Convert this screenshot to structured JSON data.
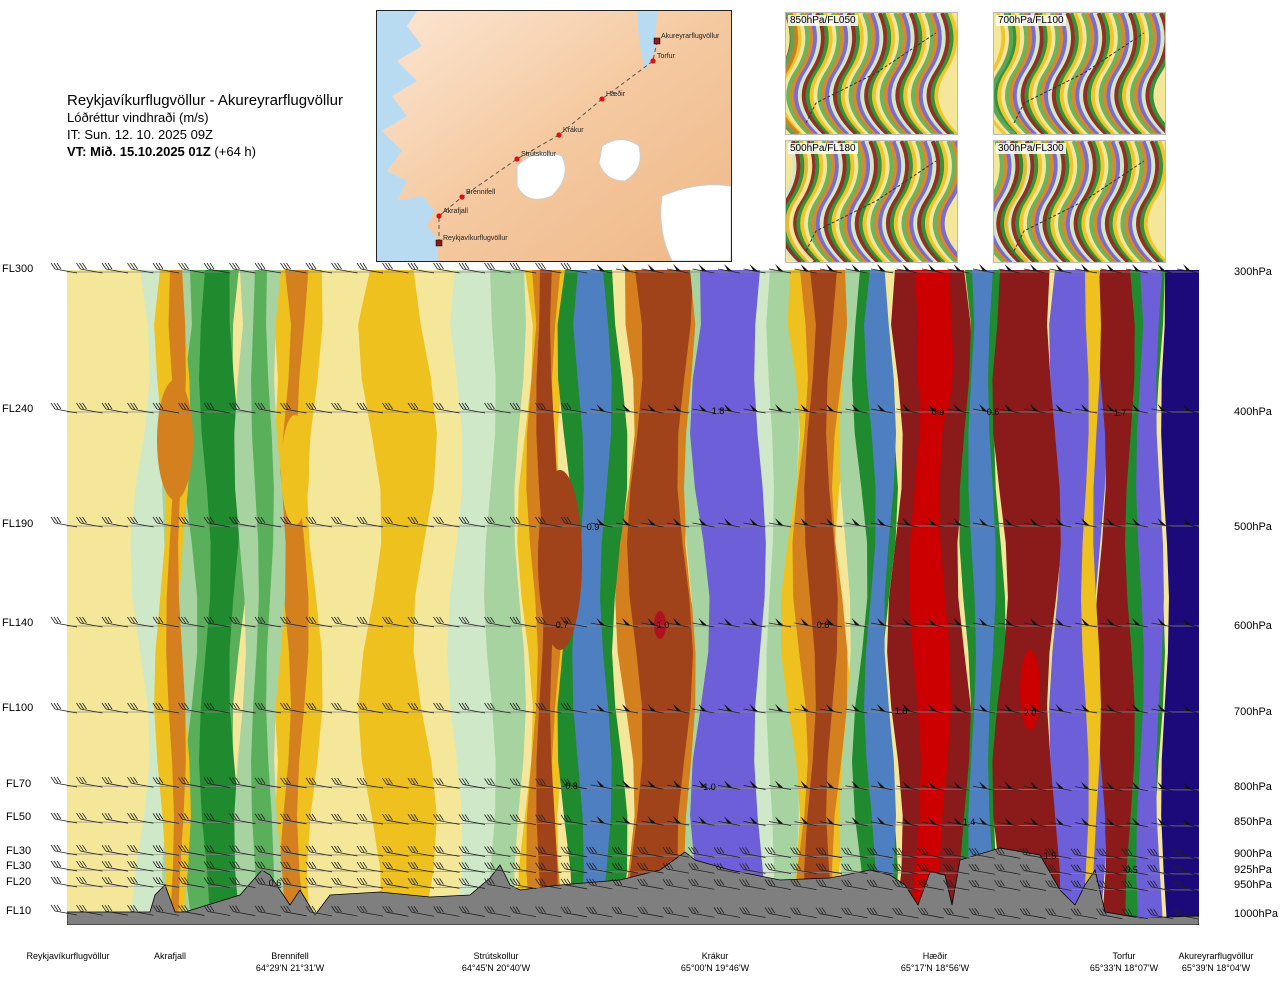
{
  "title": {
    "route": "Reykjavíkurflugvöllur - Akureyrarflugvöllur",
    "variable": "Lóðréttur vindhraði (m/s)",
    "issue_time": "IT: Sun. 12. 10. 2025 09Z",
    "valid_time": "VT: Mið. 15.10.2025 01Z",
    "valid_offset": "(+64 h)"
  },
  "map": {
    "waypoints": [
      {
        "name": "Akureyrarflugvöllur",
        "type": "airport"
      },
      {
        "name": "Torfur",
        "type": "point"
      },
      {
        "name": "Hæðir",
        "type": "point"
      },
      {
        "name": "Krákur",
        "type": "point"
      },
      {
        "name": "Strútskollur",
        "type": "point"
      },
      {
        "name": "Brennifell",
        "type": "point"
      },
      {
        "name": "Akrafjall",
        "type": "point"
      },
      {
        "name": "Reykjavíkurflugvöllur",
        "type": "airport"
      }
    ]
  },
  "mini_maps": [
    {
      "label": "850hPa/FL050"
    },
    {
      "label": "700hPa/FL100"
    },
    {
      "label": "500hPa/FL180"
    },
    {
      "label": "300hPa/FL300"
    }
  ],
  "chart_data": {
    "type": "heatmap",
    "title": "Lóðréttur vindhraði (m/s)",
    "levels": [
      {
        "fl": "FL300",
        "hpa": "300hPa"
      },
      {
        "fl": "FL240",
        "hpa": "400hPa"
      },
      {
        "fl": "FL190",
        "hpa": "500hPa"
      },
      {
        "fl": "FL140",
        "hpa": "600hPa"
      },
      {
        "fl": "FL100",
        "hpa": "700hPa"
      },
      {
        "fl": "FL70",
        "hpa": "800hPa"
      },
      {
        "fl": "FL50",
        "hpa": "850hPa"
      },
      {
        "fl": "FL30",
        "hpa": "900hPa"
      },
      {
        "fl": "FL30",
        "hpa": "925hPa"
      },
      {
        "fl": "FL20",
        "hpa": "950hPa"
      },
      {
        "fl": "FL10",
        "hpa": "1000hPa"
      }
    ],
    "locations": [
      {
        "name": "Reykjavíkurflugvöllur",
        "coord": ""
      },
      {
        "name": "Akrafjall",
        "coord": ""
      },
      {
        "name": "Brennifell",
        "coord": "64°29'N 21°31'W"
      },
      {
        "name": "Strútskollur",
        "coord": "64°45'N 20°40'W"
      },
      {
        "name": "Krákur",
        "coord": "65°00'N 19°46'W"
      },
      {
        "name": "Hæðir",
        "coord": "65°17'N 18°56'W"
      },
      {
        "name": "Torfur",
        "coord": "65°33'N 18°07'W"
      },
      {
        "name": "Akureyrarflugvöllur",
        "coord": "65°39'N 18°04'W"
      }
    ],
    "contour_labels": [
      "1.8",
      "0.9",
      "0.6",
      "1.7",
      "0.9",
      "0.7",
      "1.0",
      "0.8",
      "1.8",
      "2.0",
      "-0.8",
      "-1.0",
      "1.4",
      "1.5",
      "-0.5",
      "0.6"
    ],
    "colors": {
      "strong_down": "#8b1a1a",
      "down_high": "#a0421a",
      "down_mid": "#d4801f",
      "down_low": "#eec11f",
      "down_weak": "#f5e79a",
      "neutral": "#ffffff",
      "up_weak": "#cfe8c8",
      "up_low": "#a7d3a0",
      "up_mid": "#5aaf5a",
      "up_high": "#1f8a2e",
      "up_strong": "#4e7fc0",
      "up_very": "#6d5fd8",
      "up_extreme": "#1d0a7a",
      "terrain": "#7f7f7f"
    }
  }
}
